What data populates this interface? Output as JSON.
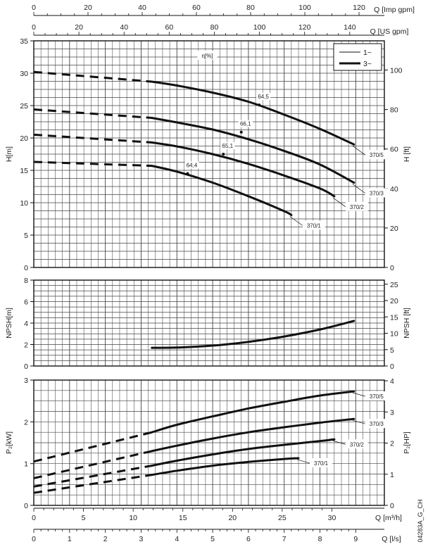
{
  "chart_data": [
    {
      "type": "line",
      "panel": "head",
      "ylabel": "H[m]",
      "ylabel_right": "H [ft]",
      "ylim": [
        0,
        35
      ],
      "yticks": [
        0,
        5,
        10,
        15,
        20,
        25,
        30,
        35
      ],
      "ylim_right": [
        0,
        114.8
      ],
      "yticks_right": [
        0,
        20,
        40,
        60,
        80,
        100
      ],
      "efficiency_label": "η[%]",
      "legend": [
        "1~",
        "3~"
      ],
      "legend_position": "top-right",
      "grid": true,
      "series": [
        {
          "name": "370/1",
          "dashed_x": [
            0,
            3.3
          ],
          "dashed_y": [
            16.3,
            15.7
          ],
          "x": [
            3.3,
            4,
            5,
            6,
            7,
            7.2
          ],
          "y": [
            15.7,
            14.8,
            13.1,
            11.0,
            8.7,
            8.1
          ]
        },
        {
          "name": "370/2",
          "dashed_x": [
            0,
            3.3
          ],
          "dashed_y": [
            20.5,
            19.3
          ],
          "x": [
            3.3,
            4,
            5,
            6,
            7,
            8,
            8.4
          ],
          "y": [
            19.3,
            18.7,
            17.5,
            16.0,
            14.2,
            12.2,
            11.0
          ]
        },
        {
          "name": "370/3",
          "dashed_x": [
            0,
            3.3
          ],
          "dashed_y": [
            24.4,
            23.1
          ],
          "x": [
            3.3,
            4,
            5,
            6,
            7,
            8,
            8.95
          ],
          "y": [
            23.1,
            22.4,
            21.3,
            19.8,
            18.0,
            15.9,
            13.1
          ]
        },
        {
          "name": "370/5",
          "dashed_x": [
            0,
            3.3
          ],
          "dashed_y": [
            30.2,
            28.7
          ],
          "x": [
            3.3,
            4,
            5,
            6,
            7,
            8,
            8.95
          ],
          "y": [
            28.7,
            28.1,
            27.0,
            25.6,
            23.6,
            21.4,
            19.0
          ]
        }
      ],
      "annotations": [
        {
          "text": "64,5",
          "x": 6.3,
          "y": 25.1
        },
        {
          "text": "66,1",
          "x": 5.8,
          "y": 20.9
        },
        {
          "text": "65,1",
          "x": 5.3,
          "y": 17.5
        },
        {
          "text": "64,4",
          "x": 4.3,
          "y": 14.5
        }
      ]
    },
    {
      "type": "line",
      "panel": "npsh",
      "ylabel": "NPSH[m]",
      "ylabel_right": "NPSH [ft]",
      "ylim": [
        0,
        8
      ],
      "yticks": [
        0,
        2,
        4,
        6,
        8
      ],
      "ylim_right": [
        0,
        26.24
      ],
      "yticks_right": [
        0,
        5,
        10,
        15,
        20,
        25
      ],
      "grid": true,
      "series": [
        {
          "name": "NPSH",
          "x": [
            3.3,
            4,
            5,
            6,
            7,
            8,
            8.95
          ],
          "y": [
            1.7,
            1.72,
            1.9,
            2.25,
            2.75,
            3.4,
            4.2
          ]
        }
      ]
    },
    {
      "type": "line",
      "panel": "power",
      "ylabel": "P₂[kW]",
      "ylabel_right": "P₂[HP]",
      "ylim": [
        0,
        3
      ],
      "yticks": [
        0,
        1,
        2,
        3
      ],
      "ylim_right": [
        0,
        4.023
      ],
      "yticks_right": [
        0,
        1,
        2,
        3,
        4
      ],
      "grid": true,
      "series": [
        {
          "name": "370/1",
          "dashed_x": [
            0,
            3.3
          ],
          "dashed_y": [
            0.3,
            0.73
          ],
          "x": [
            3.3,
            4,
            5,
            6,
            7,
            7.4
          ],
          "y": [
            0.73,
            0.83,
            0.95,
            1.04,
            1.11,
            1.13
          ]
        },
        {
          "name": "370/2",
          "dashed_x": [
            0,
            3.3
          ],
          "dashed_y": [
            0.45,
            0.95
          ],
          "x": [
            3.3,
            4,
            5,
            6,
            7,
            8,
            8.4
          ],
          "y": [
            0.95,
            1.07,
            1.22,
            1.35,
            1.45,
            1.54,
            1.58
          ]
        },
        {
          "name": "370/3",
          "dashed_x": [
            0,
            3.3
          ],
          "dashed_y": [
            0.65,
            1.3
          ],
          "x": [
            3.3,
            4,
            5,
            6,
            7,
            8,
            8.95
          ],
          "y": [
            1.3,
            1.43,
            1.6,
            1.75,
            1.87,
            1.98,
            2.07
          ]
        },
        {
          "name": "370/5",
          "dashed_x": [
            0,
            3.3
          ],
          "dashed_y": [
            1.05,
            1.75
          ],
          "x": [
            3.3,
            4,
            5,
            6,
            7,
            8,
            8.95
          ],
          "y": [
            1.75,
            1.93,
            2.13,
            2.32,
            2.48,
            2.63,
            2.73
          ]
        }
      ]
    }
  ],
  "axes": {
    "top1": {
      "label": "Q [Imp gpm]",
      "ticks": [
        "0",
        "20",
        "40",
        "60",
        "80",
        "100",
        "120"
      ],
      "max": 120
    },
    "top2": {
      "label": "Q [US gpm]",
      "ticks": [
        "0",
        "20",
        "40",
        "60",
        "80",
        "100",
        "120",
        "140"
      ],
      "max": 140
    },
    "bottom1": {
      "label": "Q [m³/h]",
      "ticks": [
        "0",
        "5",
        "10",
        "15",
        "20",
        "25",
        "30"
      ],
      "max": 30
    },
    "bottom2": {
      "label": "Q [l/s]",
      "ticks": [
        "0",
        "1",
        "2",
        "3",
        "4",
        "5",
        "6",
        "7",
        "8",
        "9"
      ],
      "max": 9
    }
  },
  "figure_code": "04283A_G_CH",
  "colors": {
    "line": "#111111",
    "grid": "#444444",
    "frame": "#111111"
  }
}
